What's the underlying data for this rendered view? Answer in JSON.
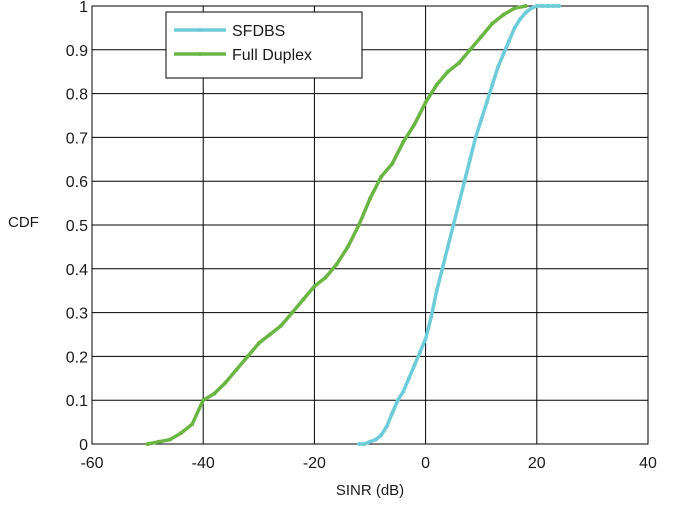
{
  "chart_data": {
    "type": "line",
    "title": "",
    "xlabel": "SINR (dB)",
    "ylabel": "CDF",
    "xlim": [
      -60,
      40
    ],
    "ylim": [
      0,
      1
    ],
    "xticks": [
      -60,
      -40,
      -20,
      0,
      20,
      40
    ],
    "yticks": [
      0,
      0.1,
      0.2,
      0.3,
      0.4,
      0.5,
      0.6,
      0.7,
      0.8,
      0.9,
      1
    ],
    "grid": true,
    "legend_position": "top-left-center",
    "series": [
      {
        "name": "SFDBS",
        "color": "#6ecbd8",
        "x": [
          -12,
          -11,
          -10,
          -9,
          -8,
          -7,
          -6,
          -5,
          -4,
          -3,
          -2,
          -1,
          0,
          1,
          2,
          3,
          4,
          5,
          6,
          7,
          8,
          9,
          10,
          11,
          12,
          13,
          14,
          15,
          16,
          17,
          18,
          19,
          20,
          21,
          22,
          23,
          24
        ],
        "y": [
          0,
          0,
          0.005,
          0.01,
          0.02,
          0.04,
          0.07,
          0.1,
          0.12,
          0.15,
          0.18,
          0.21,
          0.24,
          0.29,
          0.35,
          0.4,
          0.45,
          0.5,
          0.55,
          0.6,
          0.65,
          0.7,
          0.74,
          0.78,
          0.82,
          0.86,
          0.89,
          0.92,
          0.95,
          0.97,
          0.985,
          0.995,
          1,
          1,
          1,
          1,
          1
        ]
      },
      {
        "name": "Full Duplex",
        "color": "#6ab544",
        "x": [
          -50,
          -48,
          -46,
          -44,
          -42,
          -40,
          -38,
          -36,
          -34,
          -32,
          -30,
          -28,
          -26,
          -24,
          -22,
          -20,
          -18,
          -16,
          -14,
          -12,
          -10,
          -8,
          -6,
          -4,
          -2,
          0,
          2,
          4,
          6,
          8,
          10,
          12,
          14,
          16,
          18
        ],
        "y": [
          0,
          0.005,
          0.01,
          0.025,
          0.045,
          0.1,
          0.115,
          0.14,
          0.17,
          0.2,
          0.23,
          0.25,
          0.27,
          0.3,
          0.33,
          0.36,
          0.38,
          0.41,
          0.45,
          0.5,
          0.56,
          0.61,
          0.64,
          0.69,
          0.73,
          0.78,
          0.82,
          0.85,
          0.87,
          0.9,
          0.93,
          0.96,
          0.98,
          0.995,
          1
        ]
      }
    ]
  }
}
